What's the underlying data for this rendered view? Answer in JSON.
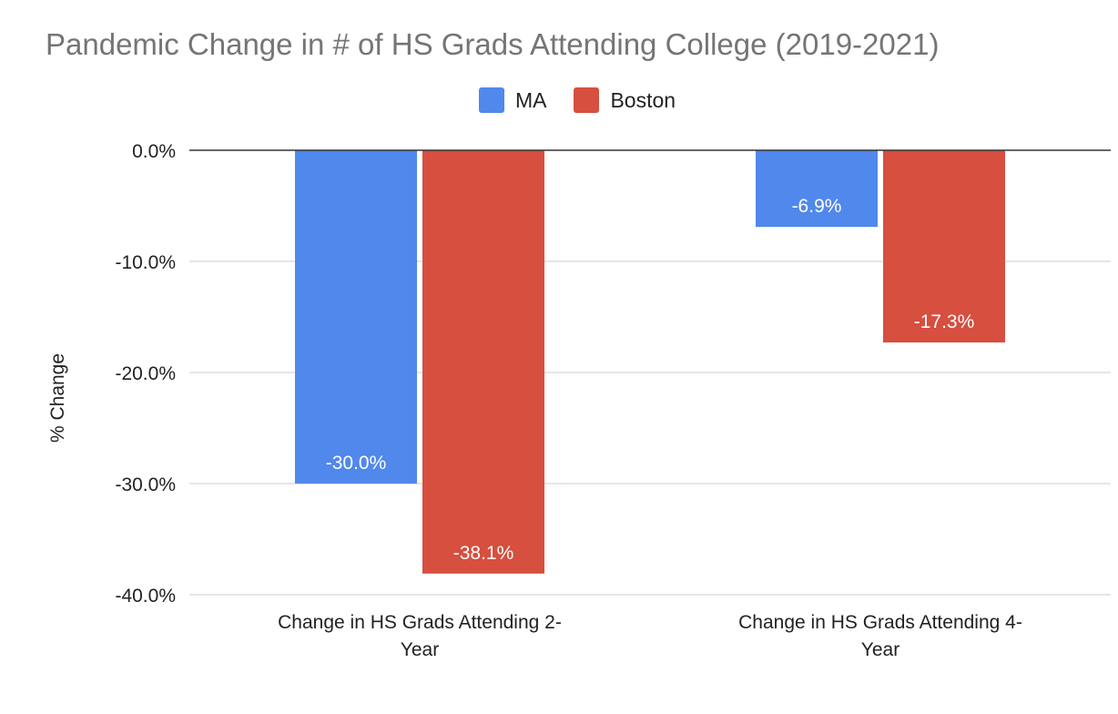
{
  "chart_data": {
    "type": "bar",
    "title": "Pandemic Change in # of HS Grads Attending College (2019-2021)",
    "xlabel": "",
    "ylabel": "% Change",
    "categories": [
      [
        "Change in HS Grads Attending 2-",
        "Year"
      ],
      [
        "Change in HS Grads Attending 4-",
        "Year"
      ]
    ],
    "series": [
      {
        "name": "MA",
        "color": "#5088ec",
        "values": [
          -30.0,
          -6.9
        ],
        "labels": [
          "-30.0%",
          "-6.9%"
        ]
      },
      {
        "name": "Boston",
        "color": "#d64f3f",
        "values": [
          -38.1,
          -17.3
        ],
        "labels": [
          "-38.1%",
          "-17.3%"
        ]
      }
    ],
    "ylim": [
      -40,
      0
    ],
    "yticks": [
      0,
      -10,
      -20,
      -30,
      -40
    ],
    "ytick_labels": [
      "0.0%",
      "-10.0%",
      "-20.0%",
      "-30.0%",
      "-40.0%"
    ],
    "grid": true,
    "legend_position": "top-center"
  }
}
